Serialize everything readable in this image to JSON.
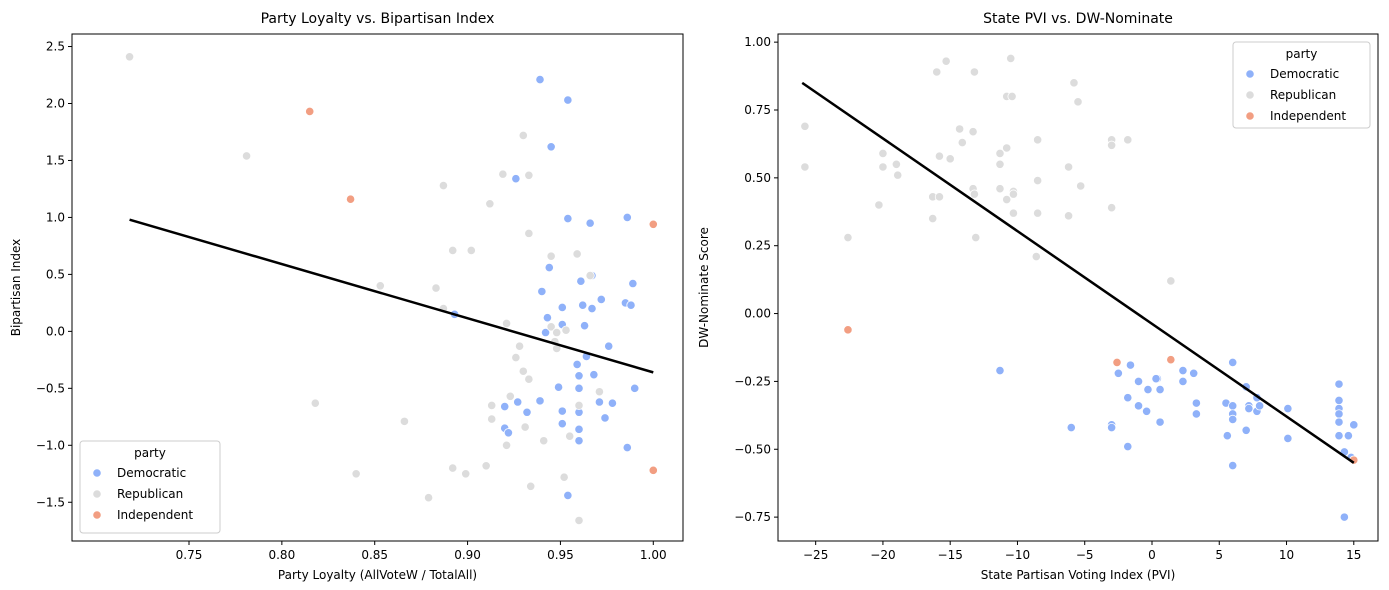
{
  "chart_data": [
    {
      "type": "scatter",
      "title": "Party Loyalty vs. Bipartisan Index",
      "xlabel": "Party Loyalty (AllVoteW / TotalAll)",
      "ylabel": "Bipartisan Index",
      "xlim": [
        0.687,
        1.016
      ],
      "ylim": [
        -1.84,
        2.61
      ],
      "xticks": [
        0.75,
        0.8,
        0.85,
        0.9,
        0.95,
        1.0
      ],
      "xtick_labels": [
        "0.75",
        "0.80",
        "0.85",
        "0.90",
        "0.95",
        "1.00"
      ],
      "yticks": [
        -1.5,
        -1.0,
        -0.5,
        0.0,
        0.5,
        1.0,
        1.5,
        2.0,
        2.5
      ],
      "ytick_labels": [
        "−1.5",
        "−1.0",
        "−0.5",
        "0.0",
        "0.5",
        "1.0",
        "1.5",
        "2.0",
        "2.5"
      ],
      "grid": false,
      "legend": {
        "title": "party",
        "position": "lower-left",
        "entries": [
          "Democratic",
          "Republican",
          "Independent"
        ]
      },
      "regression_line": {
        "x": [
          0.718,
          1.0
        ],
        "y": [
          0.98,
          -0.36
        ],
        "color": "#000000"
      },
      "series": [
        {
          "name": "Democratic",
          "color": "#8fb1f9",
          "points": [
            [
              0.939,
              2.21
            ],
            [
              0.954,
              2.03
            ],
            [
              0.945,
              1.62
            ],
            [
              0.926,
              1.34
            ],
            [
              0.954,
              0.99
            ],
            [
              0.966,
              0.95
            ],
            [
              0.986,
              1.0
            ],
            [
              0.893,
              0.15
            ],
            [
              0.944,
              0.56
            ],
            [
              0.961,
              0.44
            ],
            [
              0.967,
              0.49
            ],
            [
              0.989,
              0.42
            ],
            [
              0.94,
              0.35
            ],
            [
              0.962,
              0.23
            ],
            [
              0.951,
              0.21
            ],
            [
              0.967,
              0.2
            ],
            [
              0.972,
              0.28
            ],
            [
              0.985,
              0.25
            ],
            [
              0.988,
              0.23
            ],
            [
              0.943,
              0.12
            ],
            [
              0.951,
              0.06
            ],
            [
              0.963,
              0.05
            ],
            [
              0.942,
              -0.01
            ],
            [
              0.976,
              -0.13
            ],
            [
              0.959,
              -0.29
            ],
            [
              0.964,
              -0.22
            ],
            [
              0.968,
              -0.38
            ],
            [
              0.96,
              -0.39
            ],
            [
              0.949,
              -0.49
            ],
            [
              0.96,
              -0.5
            ],
            [
              0.99,
              -0.5
            ],
            [
              0.939,
              -0.61
            ],
            [
              0.927,
              -0.62
            ],
            [
              0.92,
              -0.66
            ],
            [
              0.971,
              -0.62
            ],
            [
              0.978,
              -0.63
            ],
            [
              0.932,
              -0.71
            ],
            [
              0.951,
              -0.7
            ],
            [
              0.96,
              -0.71
            ],
            [
              0.974,
              -0.76
            ],
            [
              0.951,
              -0.81
            ],
            [
              0.92,
              -0.85
            ],
            [
              0.922,
              -0.89
            ],
            [
              0.96,
              -0.86
            ],
            [
              0.96,
              -0.96
            ],
            [
              0.986,
              -1.02
            ],
            [
              0.954,
              -1.44
            ]
          ]
        },
        {
          "name": "Republican",
          "color": "#dcdcdc",
          "points": [
            [
              0.718,
              2.41
            ],
            [
              0.781,
              1.54
            ],
            [
              0.93,
              1.72
            ],
            [
              0.919,
              1.38
            ],
            [
              0.933,
              1.37
            ],
            [
              0.887,
              1.28
            ],
            [
              0.912,
              1.12
            ],
            [
              0.933,
              0.86
            ],
            [
              0.892,
              0.71
            ],
            [
              0.902,
              0.71
            ],
            [
              0.945,
              0.66
            ],
            [
              0.959,
              0.68
            ],
            [
              0.966,
              0.49
            ],
            [
              0.853,
              0.4
            ],
            [
              0.883,
              0.38
            ],
            [
              0.887,
              0.2
            ],
            [
              0.921,
              0.07
            ],
            [
              0.945,
              0.04
            ],
            [
              0.953,
              0.01
            ],
            [
              0.948,
              -0.01
            ],
            [
              0.928,
              -0.13
            ],
            [
              0.947,
              -0.09
            ],
            [
              0.926,
              -0.23
            ],
            [
              0.93,
              -0.35
            ],
            [
              0.933,
              -0.42
            ],
            [
              0.923,
              -0.57
            ],
            [
              0.948,
              -0.15
            ],
            [
              0.971,
              -0.53
            ],
            [
              0.818,
              -0.63
            ],
            [
              0.913,
              -0.65
            ],
            [
              0.96,
              -0.65
            ],
            [
              0.913,
              -0.77
            ],
            [
              0.866,
              -0.79
            ],
            [
              0.931,
              -0.84
            ],
            [
              0.921,
              -1.0
            ],
            [
              0.941,
              -0.96
            ],
            [
              0.955,
              -0.92
            ],
            [
              0.91,
              -1.18
            ],
            [
              0.892,
              -1.2
            ],
            [
              0.899,
              -1.25
            ],
            [
              0.84,
              -1.25
            ],
            [
              0.952,
              -1.28
            ],
            [
              0.934,
              -1.36
            ],
            [
              0.879,
              -1.46
            ],
            [
              0.96,
              -1.66
            ]
          ]
        },
        {
          "name": "Independent",
          "color": "#f29e82",
          "points": [
            [
              0.815,
              1.93
            ],
            [
              0.837,
              1.16
            ],
            [
              1.0,
              0.94
            ],
            [
              1.0,
              -1.22
            ]
          ]
        }
      ]
    },
    {
      "type": "scatter",
      "title": "State PVI vs. DW-Nominate",
      "xlabel": "State Partisan Voting Index (PVI)",
      "ylabel": "DW-Nominate Score",
      "xlim": [
        -27.8,
        16.8
      ],
      "ylim": [
        -0.838,
        1.03
      ],
      "xticks": [
        -25,
        -20,
        -15,
        -10,
        -5,
        0,
        5,
        10,
        15
      ],
      "xtick_labels": [
        "−25",
        "−20",
        "−15",
        "−10",
        "−5",
        "0",
        "5",
        "10",
        "15"
      ],
      "yticks": [
        -0.75,
        -0.5,
        -0.25,
        0.0,
        0.25,
        0.5,
        0.75,
        1.0
      ],
      "ytick_labels": [
        "−0.75",
        "−0.50",
        "−0.25",
        "0.00",
        "0.25",
        "0.50",
        "0.75",
        "1.00"
      ],
      "grid": false,
      "legend": {
        "title": "party",
        "position": "top-right",
        "entries": [
          "Democratic",
          "Republican",
          "Independent"
        ]
      },
      "regression_line": {
        "x": [
          -26,
          15
        ],
        "y": [
          0.85,
          -0.55
        ],
        "color": "#000000"
      },
      "series": [
        {
          "name": "Democratic",
          "color": "#8fb1f9",
          "points": [
            [
              -11.3,
              -0.21
            ],
            [
              -6,
              -0.42
            ],
            [
              -3,
              -0.41
            ],
            [
              -3,
              -0.42
            ],
            [
              -2.5,
              -0.22
            ],
            [
              -1.8,
              -0.31
            ],
            [
              -1.6,
              -0.19
            ],
            [
              -1.8,
              -0.49
            ],
            [
              -1,
              -0.25
            ],
            [
              -1,
              -0.34
            ],
            [
              -0.4,
              -0.36
            ],
            [
              -0.3,
              -0.28
            ],
            [
              0.4,
              -0.24
            ],
            [
              0.6,
              -0.28
            ],
            [
              0.6,
              -0.4
            ],
            [
              0.3,
              -0.24
            ],
            [
              2.3,
              -0.21
            ],
            [
              2.3,
              -0.25
            ],
            [
              3.1,
              -0.22
            ],
            [
              3.3,
              -0.33
            ],
            [
              3.3,
              -0.37
            ],
            [
              5.5,
              -0.33
            ],
            [
              5.6,
              -0.45
            ],
            [
              6,
              -0.18
            ],
            [
              6,
              -0.34
            ],
            [
              6,
              -0.37
            ],
            [
              6,
              -0.39
            ],
            [
              6,
              -0.56
            ],
            [
              7,
              -0.27
            ],
            [
              7.2,
              -0.34
            ],
            [
              7.2,
              -0.35
            ],
            [
              7,
              -0.43
            ],
            [
              7.8,
              -0.31
            ],
            [
              7.8,
              -0.36
            ],
            [
              8,
              -0.34
            ],
            [
              10.1,
              -0.35
            ],
            [
              10.1,
              -0.46
            ],
            [
              13.9,
              -0.26
            ],
            [
              13.9,
              -0.32
            ],
            [
              13.9,
              -0.35
            ],
            [
              13.9,
              -0.37
            ],
            [
              13.9,
              -0.4
            ],
            [
              13.9,
              -0.45
            ],
            [
              14.3,
              -0.51
            ],
            [
              14.3,
              -0.75
            ],
            [
              14.6,
              -0.45
            ],
            [
              15,
              -0.41
            ],
            [
              14.8,
              -0.53
            ]
          ]
        },
        {
          "name": "Republican",
          "color": "#dcdcdc",
          "points": [
            [
              -25.8,
              0.69
            ],
            [
              -25.8,
              0.54
            ],
            [
              -22.6,
              0.28
            ],
            [
              -20.3,
              0.4
            ],
            [
              -20,
              0.59
            ],
            [
              -20,
              0.54
            ],
            [
              -19,
              0.55
            ],
            [
              -18.9,
              0.51
            ],
            [
              -16.3,
              0.35
            ],
            [
              -16.3,
              0.43
            ],
            [
              -16,
              0.89
            ],
            [
              -15.8,
              0.58
            ],
            [
              -15.8,
              0.43
            ],
            [
              -15.3,
              0.93
            ],
            [
              -15,
              0.57
            ],
            [
              -14.3,
              0.68
            ],
            [
              -14.1,
              0.63
            ],
            [
              -13.2,
              0.89
            ],
            [
              -13.3,
              0.67
            ],
            [
              -13.3,
              0.46
            ],
            [
              -13.2,
              0.44
            ],
            [
              -13.1,
              0.28
            ],
            [
              -11.3,
              0.59
            ],
            [
              -11.3,
              0.55
            ],
            [
              -11.3,
              0.46
            ],
            [
              -10.8,
              0.61
            ],
            [
              -10.8,
              0.42
            ],
            [
              -10.8,
              0.8
            ],
            [
              -10.5,
              0.94
            ],
            [
              -10.4,
              0.8
            ],
            [
              -10.3,
              0.45
            ],
            [
              -10.3,
              0.37
            ],
            [
              -10.3,
              0.44
            ],
            [
              -8.5,
              0.64
            ],
            [
              -8.5,
              0.49
            ],
            [
              -8.5,
              0.37
            ],
            [
              -8.6,
              0.21
            ],
            [
              -6.2,
              0.54
            ],
            [
              -6.2,
              0.36
            ],
            [
              -5.8,
              0.85
            ],
            [
              -5.5,
              0.78
            ],
            [
              -5.3,
              0.47
            ],
            [
              -3,
              0.64
            ],
            [
              -3,
              0.62
            ],
            [
              -3,
              0.39
            ],
            [
              -1.8,
              0.64
            ],
            [
              1.4,
              0.12
            ]
          ]
        },
        {
          "name": "Independent",
          "color": "#f29e82",
          "points": [
            [
              -22.6,
              -0.06
            ],
            [
              -2.6,
              -0.18
            ],
            [
              1.4,
              -0.17
            ],
            [
              15,
              -0.54
            ]
          ]
        }
      ]
    }
  ]
}
